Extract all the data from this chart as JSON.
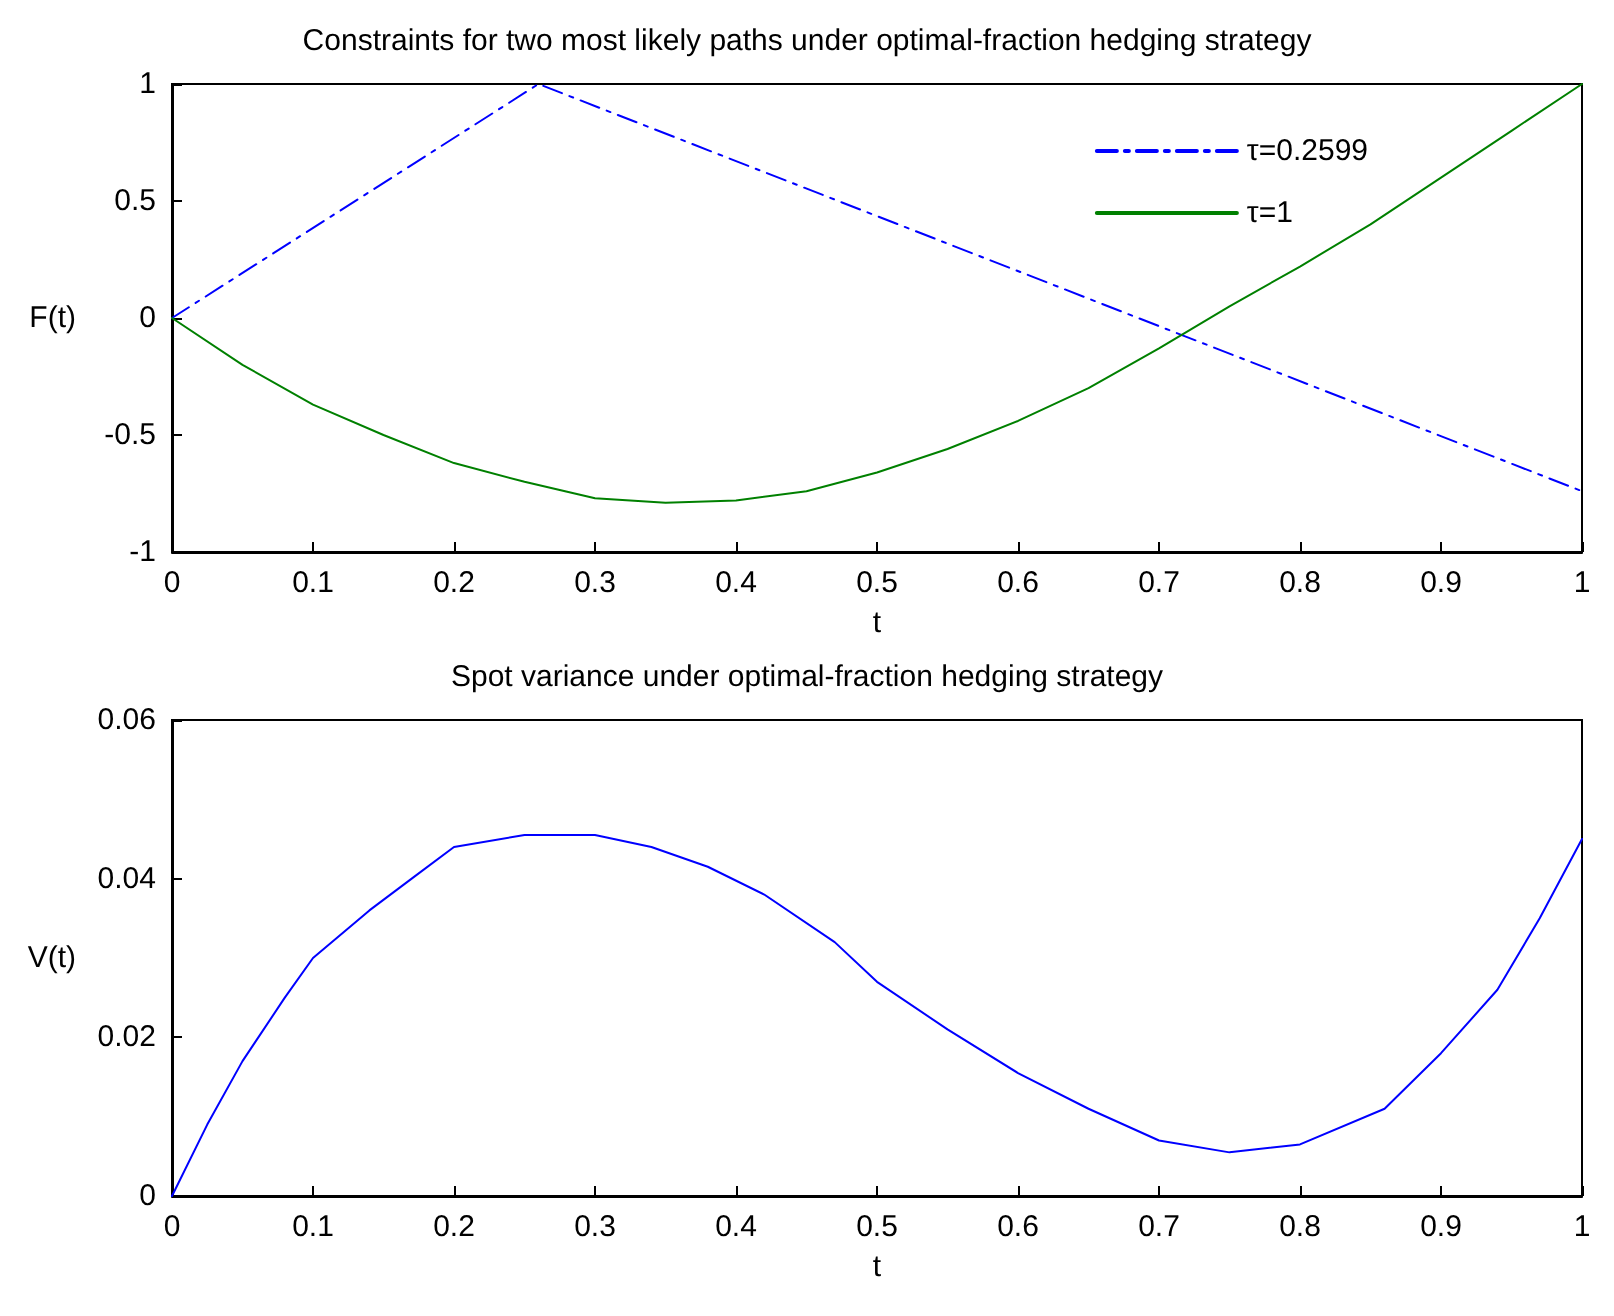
{
  "chart_data": [
    {
      "type": "line",
      "title": "Constraints for two most likely paths under optimal-fraction hedging strategy",
      "xlabel": "t",
      "ylabel": "F(t)",
      "xlim": [
        0,
        1
      ],
      "xticks": [
        0,
        0.1,
        0.2,
        0.3,
        0.4,
        0.5,
        0.6,
        0.7,
        0.8,
        0.9,
        1
      ],
      "ylim": [
        -1,
        1
      ],
      "yticks": [
        -1,
        -0.5,
        0,
        0.5,
        1
      ],
      "grid": false,
      "legend": "top right",
      "marker": "none",
      "series": [
        {
          "name": "τ=0.2599",
          "color": "#0000ff",
          "line_style": "dashdot",
          "x": [
            0,
            0.2599,
            1
          ],
          "values": [
            0,
            1,
            -0.74
          ]
        },
        {
          "name": "τ=1",
          "color": "#008000",
          "line_style": "solid",
          "x": [
            0,
            0.05,
            0.1,
            0.15,
            0.2,
            0.25,
            0.3,
            0.35,
            0.4,
            0.45,
            0.5,
            0.55,
            0.6,
            0.65,
            0.7,
            0.75,
            0.8,
            0.85,
            0.9,
            0.95,
            1
          ],
          "values": [
            0,
            -0.2,
            -0.37,
            -0.5,
            -0.62,
            -0.7,
            -0.77,
            -0.79,
            -0.78,
            -0.74,
            -0.66,
            -0.56,
            -0.44,
            -0.3,
            -0.13,
            0.05,
            0.22,
            0.4,
            0.6,
            0.8,
            1
          ]
        }
      ]
    },
    {
      "type": "line",
      "title": "Spot variance under optimal-fraction hedging strategy",
      "xlabel": "t",
      "ylabel": "V(t)",
      "xlim": [
        0,
        1
      ],
      "xticks": [
        0,
        0.1,
        0.2,
        0.3,
        0.4,
        0.5,
        0.6,
        0.7,
        0.8,
        0.9,
        1
      ],
      "ylim": [
        0,
        0.06
      ],
      "yticks": [
        0,
        0.02,
        0.04,
        0.06
      ],
      "grid": false,
      "legend": false,
      "marker": "none",
      "series": [
        {
          "color": "#0000ff",
          "line_style": "solid",
          "x": [
            0,
            0.025,
            0.05,
            0.08,
            0.1,
            0.14,
            0.17,
            0.2,
            0.25,
            0.3,
            0.34,
            0.38,
            0.42,
            0.47,
            0.5,
            0.55,
            0.6,
            0.65,
            0.7,
            0.75,
            0.8,
            0.86,
            0.9,
            0.94,
            0.97,
            1
          ],
          "values": [
            0,
            0.009,
            0.017,
            0.025,
            0.03,
            0.036,
            0.04,
            0.044,
            0.0455,
            0.0455,
            0.044,
            0.0415,
            0.038,
            0.032,
            0.027,
            0.021,
            0.0155,
            0.011,
            0.007,
            0.0055,
            0.0065,
            0.011,
            0.018,
            0.026,
            0.035,
            0.045
          ]
        }
      ]
    }
  ]
}
